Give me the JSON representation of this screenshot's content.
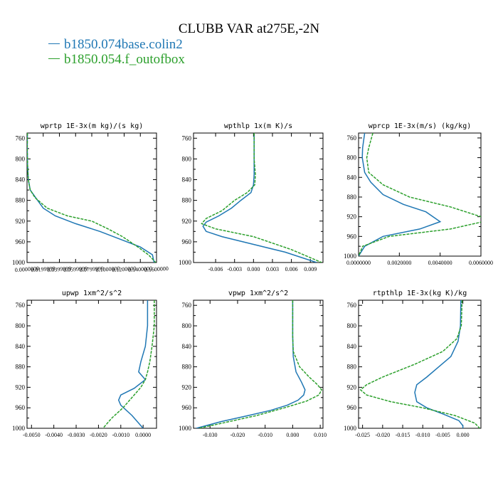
{
  "figure_title": "CLUBB VAR at275E,-2N",
  "legend": [
    {
      "label": "b1850.074base.colin2",
      "color": "#1f77b4"
    },
    {
      "label": "b1850.054.f_outofbox",
      "color": "#2ca02c"
    }
  ],
  "chart_data": [
    {
      "type": "line",
      "title": "wprtp  1E-3x(m kg)/(s kg)",
      "xlim": [
        0,
        0.16
      ],
      "ylim": [
        1000,
        750
      ],
      "xticks": [
        0,
        0.02,
        0.04,
        0.06,
        0.08,
        0.1,
        0.12,
        0.14,
        0.16
      ],
      "xtick_labels": [
        "0.0000000",
        "0.0199999",
        "0.0399999",
        "0.0599999",
        "0.0799999",
        "0.1000000",
        "0.1200000",
        "0.1400000",
        "0.1600000"
      ],
      "yticks": [
        760,
        800,
        840,
        880,
        920,
        960,
        1000
      ],
      "series": [
        {
          "name": "b1850.074base.colin2",
          "x": [
            0.0004,
            0.0003,
            0.0006,
            0.0016,
            0.004,
            0.013,
            0.02,
            0.035,
            0.06,
            0.09,
            0.115,
            0.14,
            0.155,
            0.157
          ],
          "y": [
            750,
            780,
            810,
            840,
            860,
            880,
            895,
            910,
            925,
            940,
            955,
            970,
            985,
            1000
          ]
        },
        {
          "name": "b1850.054.f_outofbox",
          "x": [
            0.0004,
            0.0003,
            0.0006,
            0.0016,
            0.004,
            0.01,
            0.025,
            0.05,
            0.08,
            0.1,
            0.118,
            0.137,
            0.15,
            0.159
          ],
          "y": [
            750,
            780,
            810,
            840,
            860,
            875,
            895,
            910,
            920,
            935,
            950,
            970,
            985,
            1000
          ]
        }
      ]
    },
    {
      "type": "line",
      "title": "wpthlp  1x(m K)/s",
      "xlim": [
        -0.0095,
        0.011
      ],
      "ylim": [
        1000,
        750
      ],
      "xticks": [
        -0.006,
        -0.003,
        0,
        0.003,
        0.006,
        0.009
      ],
      "xtick_labels": [
        "-0.006",
        "-0.003",
        "0.000",
        "0.003",
        "0.006",
        "0.009"
      ],
      "yticks": [
        760,
        800,
        840,
        880,
        920,
        960,
        1000
      ],
      "series": [
        {
          "name": "b1850.074base.colin2",
          "x": [
            0.0001,
            0.0001,
            0.0001,
            0,
            -0.0004,
            -0.002,
            -0.0035,
            -0.0055,
            -0.0075,
            -0.008,
            -0.0075,
            -0.005,
            0,
            0.005,
            0.01
          ],
          "y": [
            750,
            800,
            830,
            850,
            865,
            880,
            895,
            910,
            922,
            930,
            940,
            950,
            965,
            980,
            1000
          ]
        },
        {
          "name": "b1850.054.f_outofbox",
          "x": [
            0.0001,
            0.0001,
            0.0003,
            0.0002,
            -0.001,
            -0.003,
            -0.005,
            -0.0075,
            -0.0082,
            -0.006,
            0,
            0.006,
            0.0108
          ],
          "y": [
            750,
            800,
            830,
            850,
            865,
            880,
            900,
            915,
            925,
            935,
            950,
            975,
            1000
          ]
        }
      ]
    },
    {
      "type": "line",
      "title": "wprcp  1E-3x(m/s) (kg/kg)",
      "xlim": [
        0,
        0.006
      ],
      "ylim": [
        1000,
        750
      ],
      "xticks": [
        0,
        0.002,
        0.004,
        0.006
      ],
      "xtick_labels": [
        "0.0000000",
        "0.0020000",
        "0.0040000",
        "0.0060000"
      ],
      "yticks": [
        760,
        800,
        840,
        880,
        920,
        960,
        1000
      ],
      "series": [
        {
          "name": "b1850.074base.colin2",
          "x": [
            0.0003,
            0.0002,
            0.00018,
            0.0003,
            0.0006,
            0.0012,
            0.0022,
            0.0033,
            0.004,
            0.003,
            0.0012,
            0.0003,
            0
          ],
          "y": [
            750,
            780,
            800,
            830,
            850,
            875,
            895,
            910,
            930,
            945,
            960,
            980,
            1000
          ]
        },
        {
          "name": "b1850.054.f_outofbox",
          "x": [
            0.0007,
            0.0005,
            0.0004,
            0.0005,
            0.0012,
            0.0025,
            0.0045,
            0.006,
            0.0061,
            0.0045,
            0.0015,
            0.0002,
            0
          ],
          "y": [
            750,
            780,
            800,
            830,
            855,
            880,
            900,
            920,
            930,
            945,
            960,
            980,
            1000
          ]
        }
      ]
    },
    {
      "type": "line",
      "title": "upwp  1xm^2/s^2",
      "xlim": [
        -0.0052,
        0.0006
      ],
      "ylim": [
        1000,
        750
      ],
      "xticks": [
        -0.005,
        -0.004,
        -0.003,
        -0.002,
        -0.001,
        0
      ],
      "xtick_labels": [
        "-0.0050",
        "-0.0040",
        "-0.0030",
        "-0.0020",
        "-0.0010",
        "0.0000"
      ],
      "yticks": [
        760,
        800,
        840,
        880,
        920,
        960,
        1000
      ],
      "series": [
        {
          "name": "b1850.074base.colin2",
          "x": [
            0.0002,
            0.0002,
            0.0001,
            -0.0001,
            -0.0002,
            0.0001,
            -0.0004,
            -0.001,
            -0.0011,
            -0.001,
            -0.0005,
            0
          ],
          "y": [
            750,
            800,
            840,
            870,
            890,
            905,
            922,
            935,
            945,
            955,
            975,
            1000
          ]
        },
        {
          "name": "b1850.054.f_outofbox",
          "x": [
            0.0005,
            0.0005,
            0.0004,
            0.0003,
            0.0002,
            0.0001,
            -0.0001,
            -0.0005,
            -0.0009,
            -0.0014,
            -0.0018
          ],
          "y": [
            750,
            800,
            840,
            870,
            890,
            905,
            920,
            940,
            960,
            980,
            1000
          ]
        }
      ]
    },
    {
      "type": "line",
      "title": "vpwp  1xm^2/s^2",
      "xlim": [
        -0.036,
        0.011
      ],
      "ylim": [
        1000,
        750
      ],
      "xticks": [
        -0.03,
        -0.02,
        -0.01,
        0,
        0.01
      ],
      "xtick_labels": [
        "-0.030",
        "-0.020",
        "-0.010",
        "0.000",
        "0.010"
      ],
      "yticks": [
        760,
        800,
        840,
        880,
        920,
        960,
        1000
      ],
      "series": [
        {
          "name": "b1850.074base.colin2",
          "x": [
            0,
            0,
            0.0002,
            0.0012,
            0.0032,
            0.0045,
            0.004,
            0.002,
            -0.002,
            -0.008,
            -0.016,
            -0.026,
            -0.035
          ],
          "y": [
            750,
            820,
            860,
            890,
            910,
            925,
            935,
            945,
            955,
            965,
            975,
            987,
            1000
          ]
        },
        {
          "name": "b1850.054.f_outofbox",
          "x": [
            0,
            0,
            0.0002,
            0.0025,
            0.006,
            0.009,
            0.0105,
            0.0095,
            0.005,
            -0.003,
            -0.013,
            -0.024,
            -0.034
          ],
          "y": [
            750,
            820,
            850,
            880,
            900,
            915,
            925,
            935,
            947,
            960,
            975,
            988,
            1000
          ]
        }
      ]
    },
    {
      "type": "line",
      "title": "rtpthlp  1E-3x(kg K)/kg",
      "xlim": [
        -0.026,
        0.0045
      ],
      "ylim": [
        1000,
        750
      ],
      "xticks": [
        -0.025,
        -0.02,
        -0.015,
        -0.01,
        -0.005,
        0
      ],
      "xtick_labels": [
        "-0.025",
        "-0.020",
        "-0.015",
        "-0.010",
        "-0.005",
        "0.000"
      ],
      "yticks": [
        760,
        800,
        840,
        880,
        920,
        960,
        1000
      ],
      "series": [
        {
          "name": "b1850.074base.colin2",
          "x": [
            -0.0005,
            -0.0006,
            -0.0012,
            -0.003,
            -0.006,
            -0.009,
            -0.0115,
            -0.012,
            -0.0115,
            -0.009,
            -0.005,
            -0.001,
            0,
            0
          ],
          "y": [
            750,
            800,
            830,
            860,
            880,
            900,
            915,
            930,
            948,
            960,
            972,
            985,
            995,
            1000
          ]
        },
        {
          "name": "b1850.054.f_outofbox",
          "x": [
            -0.0002,
            -0.0004,
            -0.0015,
            -0.005,
            -0.012,
            -0.02,
            -0.024,
            -0.0255,
            -0.024,
            -0.018,
            -0.01,
            -0.002,
            0.003,
            0.0042
          ],
          "y": [
            750,
            800,
            825,
            850,
            875,
            900,
            915,
            925,
            935,
            948,
            960,
            975,
            990,
            1000
          ]
        }
      ]
    }
  ]
}
